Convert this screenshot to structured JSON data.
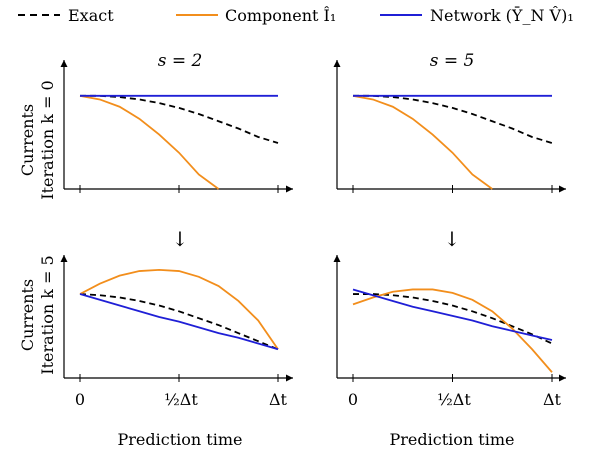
{
  "legend": [
    {
      "label": "Exact",
      "color": "#000000",
      "dash": true
    },
    {
      "label": "Component Î₁",
      "color": "#f28e1c",
      "dash": false
    },
    {
      "label": "Network (Ȳ_N V̂)₁",
      "color": "#1f1fd6",
      "dash": false
    }
  ],
  "row_labels": [
    "Currents",
    "Iteration k = 0",
    "Currents",
    "Iteration k = 5"
  ],
  "column_titles": [
    "s = 2",
    "s = 5"
  ],
  "x_tick_labels": [
    "0",
    "½Δt",
    "Δt"
  ],
  "xlabel": "Prediction time",
  "arrow_glyph": "↓",
  "chart_data": [
    {
      "type": "line",
      "title": "s = 2",
      "xlim": [
        0,
        1
      ],
      "ylim": [
        0,
        1
      ],
      "x": [
        0,
        0.1,
        0.2,
        0.3,
        0.4,
        0.5,
        0.6,
        0.7,
        0.8,
        0.9,
        1.0
      ],
      "series": [
        {
          "name": "Exact",
          "values": [
            0.77,
            0.77,
            0.76,
            0.74,
            0.71,
            0.67,
            0.62,
            0.56,
            0.5,
            0.43,
            0.38
          ]
        },
        {
          "name": "Component Î₁",
          "values": [
            0.77,
            0.74,
            0.68,
            0.58,
            0.45,
            0.3,
            0.12,
            0.0,
            null,
            null,
            null
          ]
        },
        {
          "name": "Network (Ȳ_N V̂)₁",
          "values": [
            0.77,
            0.77,
            0.77,
            0.77,
            0.77,
            0.77,
            0.77,
            0.77,
            0.77,
            0.77,
            0.77
          ]
        }
      ]
    },
    {
      "type": "line",
      "title": "s = 5",
      "xlim": [
        0,
        1
      ],
      "ylim": [
        0,
        1
      ],
      "x": [
        0,
        0.1,
        0.2,
        0.3,
        0.4,
        0.5,
        0.6,
        0.7,
        0.8,
        0.9,
        1.0
      ],
      "series": [
        {
          "name": "Exact",
          "values": [
            0.77,
            0.77,
            0.76,
            0.74,
            0.71,
            0.67,
            0.62,
            0.56,
            0.5,
            0.43,
            0.38
          ]
        },
        {
          "name": "Component Î₁",
          "values": [
            0.77,
            0.74,
            0.68,
            0.58,
            0.45,
            0.3,
            0.12,
            0.0,
            null,
            null,
            null
          ]
        },
        {
          "name": "Network (Ȳ_N V̂)₁",
          "values": [
            0.77,
            0.77,
            0.77,
            0.77,
            0.77,
            0.77,
            0.77,
            0.77,
            0.77,
            0.77,
            0.77
          ]
        }
      ]
    },
    {
      "type": "line",
      "title": "",
      "xlim": [
        0,
        1
      ],
      "ylim": [
        0,
        1
      ],
      "x": [
        0,
        0.1,
        0.2,
        0.3,
        0.4,
        0.5,
        0.6,
        0.7,
        0.8,
        0.9,
        1.0
      ],
      "series": [
        {
          "name": "Exact",
          "values": [
            0.73,
            0.72,
            0.7,
            0.67,
            0.63,
            0.58,
            0.52,
            0.46,
            0.39,
            0.32,
            0.25
          ]
        },
        {
          "name": "Component Î₁",
          "values": [
            0.73,
            0.82,
            0.89,
            0.93,
            0.94,
            0.93,
            0.88,
            0.8,
            0.67,
            0.5,
            0.25
          ]
        },
        {
          "name": "Network (Ȳ_N V̂)₁",
          "values": [
            0.73,
            0.68,
            0.63,
            0.58,
            0.53,
            0.49,
            0.44,
            0.39,
            0.35,
            0.3,
            0.25
          ]
        }
      ]
    },
    {
      "type": "line",
      "title": "",
      "xlim": [
        0,
        1
      ],
      "ylim": [
        0,
        1
      ],
      "x": [
        0,
        0.1,
        0.2,
        0.3,
        0.4,
        0.5,
        0.6,
        0.7,
        0.8,
        0.9,
        1.0
      ],
      "series": [
        {
          "name": "Exact",
          "values": [
            0.73,
            0.73,
            0.72,
            0.7,
            0.67,
            0.63,
            0.58,
            0.52,
            0.45,
            0.38,
            0.3
          ]
        },
        {
          "name": "Component Î₁",
          "values": [
            0.64,
            0.7,
            0.75,
            0.77,
            0.77,
            0.74,
            0.68,
            0.58,
            0.43,
            0.25,
            0.05
          ]
        },
        {
          "name": "Network (Ȳ_N V̂)₁",
          "values": [
            0.77,
            0.72,
            0.67,
            0.62,
            0.58,
            0.54,
            0.5,
            0.45,
            0.41,
            0.37,
            0.33
          ]
        }
      ]
    }
  ]
}
